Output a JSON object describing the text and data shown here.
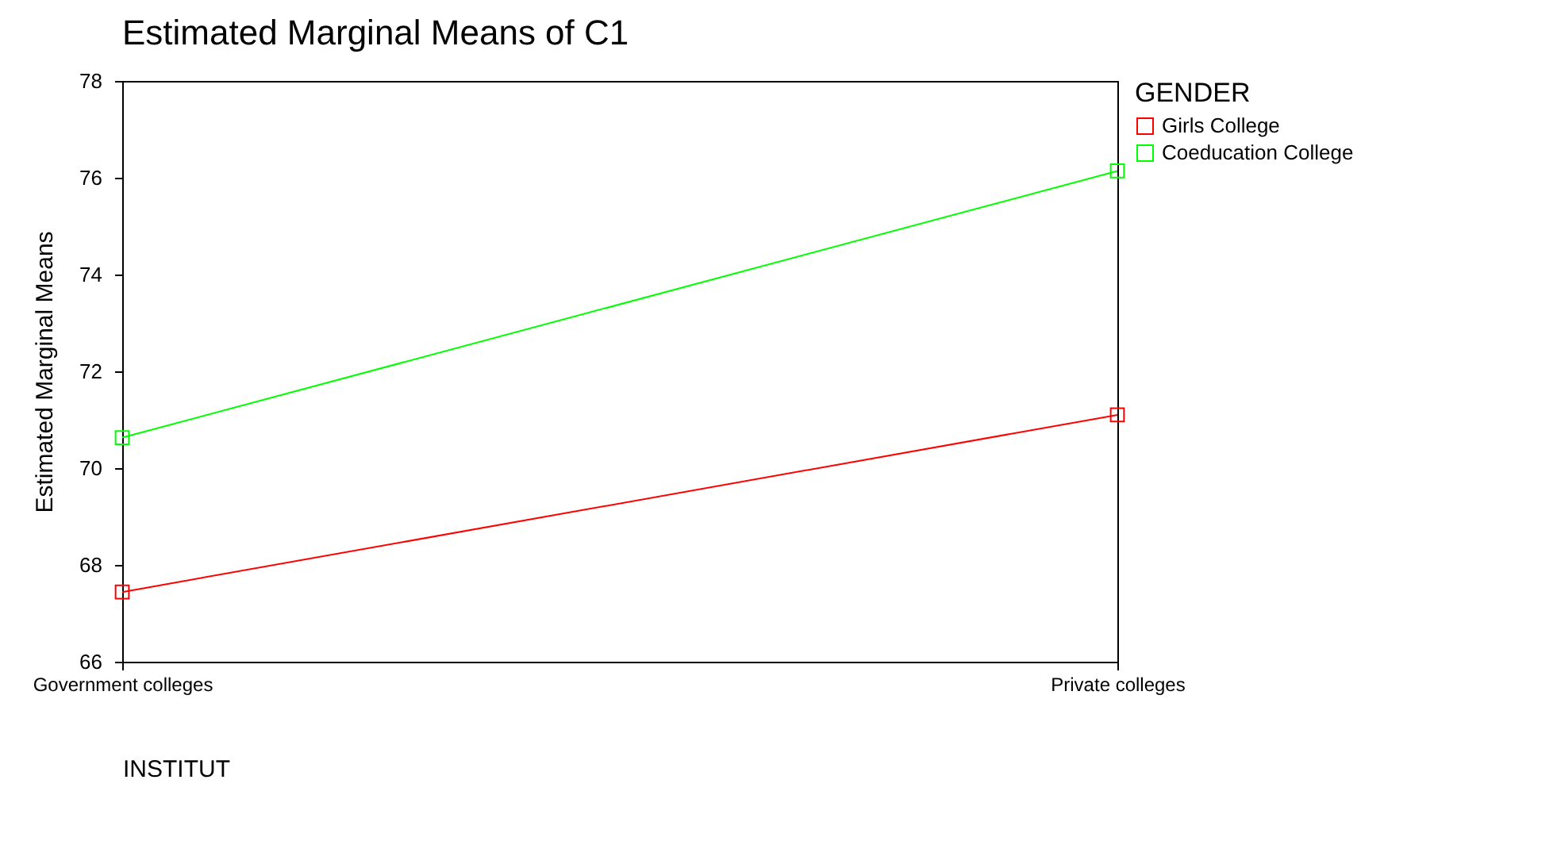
{
  "chart_data": {
    "type": "line",
    "title": "Estimated Marginal Means of C1",
    "xlabel": "INSTITUT",
    "ylabel": "Estimated Marginal Means",
    "legend_title": "GENDER",
    "categories": [
      "Government colleges",
      "Private colleges"
    ],
    "series": [
      {
        "name": "Girls College",
        "color": "#ff0000",
        "values": [
          67.44,
          71.1
        ]
      },
      {
        "name": "Coeducation College",
        "color": "#00ff00",
        "values": [
          70.63,
          76.14
        ]
      }
    ],
    "ylim": [
      66,
      78
    ],
    "yticks": [
      66,
      68,
      70,
      72,
      74,
      76,
      78
    ],
    "grid": false,
    "legend": "right",
    "marker": "square",
    "line_style": "solid"
  }
}
